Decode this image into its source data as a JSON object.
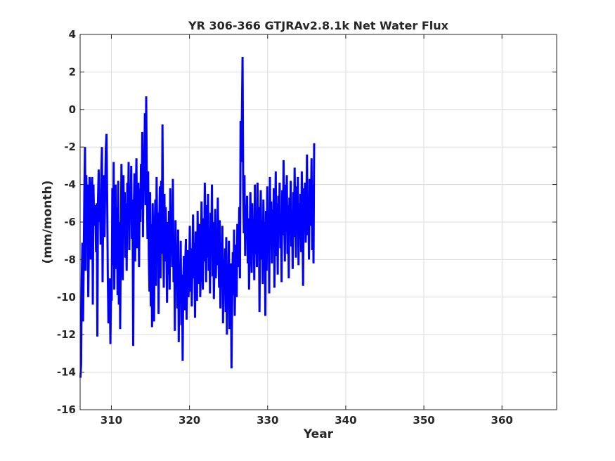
{
  "chart_data": {
    "type": "line",
    "title": "YR 306-366 GTJRAv2.8.1k Net Water Flux",
    "xlabel": "Year",
    "ylabel": "(mm/month)",
    "xlim": [
      306,
      367
    ],
    "ylim": [
      -16,
      4
    ],
    "xticks": [
      310,
      320,
      330,
      340,
      350,
      360
    ],
    "yticks": [
      -16,
      -14,
      -12,
      -10,
      -8,
      -6,
      -4,
      -2,
      0,
      2,
      4
    ],
    "grid": true,
    "legend": "none",
    "series": [
      {
        "color": "#0000ff",
        "x_start": 306.0417,
        "x_step": 0.08333,
        "values": [
          -14.3,
          -13.6,
          -9.0,
          -7.1,
          -11.3,
          -8.2,
          -4.4,
          -2.0,
          -8.6,
          -3.5,
          -6.1,
          -4.0,
          -10.0,
          -7.0,
          -3.6,
          -5.8,
          -8.0,
          -4.2,
          -3.6,
          -10.4,
          -4.0,
          -6.2,
          -5.8,
          -5.1,
          -7.6,
          -5.0,
          -12.1,
          -4.8,
          -3.2,
          -6.0,
          -4.5,
          -7.2,
          -3.4,
          -2.0,
          -9.2,
          -5.0,
          -3.5,
          -6.8,
          -4.3,
          -2.1,
          -1.3,
          -4.5,
          -8.8,
          -11.4,
          -10.8,
          -9.0,
          -12.5,
          -9.8,
          -10.2,
          -4.2,
          -8.3,
          -2.8,
          -9.6,
          -5.6,
          -4.0,
          -8.5,
          -5.2,
          -9.9,
          -3.8,
          -10.4,
          -6.0,
          -11.7,
          -7.2,
          -2.9,
          -5.8,
          -9.1,
          -3.5,
          -6.7,
          -4.4,
          -7.9,
          -5.0,
          -8.6,
          -3.9,
          -6.2,
          -2.8,
          -7.5,
          -4.1,
          -5.5,
          -3.0,
          -6.9,
          -4.8,
          -12.6,
          -5.2,
          -3.4,
          -8.1,
          -4.6,
          -2.6,
          -7.4,
          -5.7,
          -3.9,
          -8.4,
          -4.2,
          -6.0,
          -2.9,
          -5.3,
          -1.2,
          -6.8,
          -2.5,
          -3.7,
          -0.2,
          -5.1,
          0.7,
          -4.0,
          -6.9,
          -3.3,
          -7.8,
          -9.7,
          -4.4,
          -10.5,
          -6.1,
          -11.6,
          -5.0,
          -8.2,
          -11.3,
          -6.6,
          -4.8,
          -9.4,
          -3.6,
          -7.0,
          -5.5,
          -10.9,
          -6.3,
          -4.1,
          -9.0,
          -3.8,
          -7.7,
          -0.8,
          -6.4,
          -9.5,
          -4.5,
          -8.1,
          -5.2,
          -7.2,
          -10.3,
          -6.0,
          -8.8,
          -5.4,
          -9.6,
          -4.2,
          -7.5,
          -6.6,
          -8.4,
          -3.7,
          -9.2,
          -6.8,
          -11.8,
          -5.9,
          -8.5,
          -7.3,
          -10.6,
          -6.4,
          -12.4,
          -8.2,
          -9.9,
          -7.0,
          -11.5,
          -8.8,
          -13.4,
          -9.1,
          -7.8,
          -10.7,
          -8.3,
          -6.9,
          -11.2,
          -9.4,
          -7.5,
          -10.0,
          -8.6,
          -6.2,
          -9.7,
          -7.4,
          -10.5,
          -8.0,
          -5.6,
          -9.0,
          -7.1,
          -11.1,
          -6.5,
          -8.9,
          -10.2,
          -5.4,
          -9.3,
          -7.7,
          -6.1,
          -10.0,
          -8.4,
          -4.9,
          -7.3,
          -9.6,
          -5.8,
          -8.1,
          -3.9,
          -6.7,
          -9.2,
          -5.1,
          -7.9,
          -4.5,
          -8.6,
          -6.3,
          -9.8,
          -5.5,
          -7.2,
          -4.0,
          -8.9,
          -6.0,
          -10.1,
          -7.5,
          -5.3,
          -9.0,
          -6.6,
          -8.3,
          -4.7,
          -7.8,
          -9.5,
          -5.9,
          -10.6,
          -7.1,
          -8.7,
          -6.2,
          -11.4,
          -8.0,
          -9.3,
          -7.4,
          -10.8,
          -6.8,
          -12.0,
          -8.5,
          -9.7,
          -7.0,
          -11.7,
          -9.1,
          -8.2,
          -13.8,
          -10.3,
          -7.6,
          -9.9,
          -6.4,
          -11.0,
          -8.8,
          -7.2,
          -10.0,
          -6.1,
          -8.4,
          -7.5,
          -5.2,
          -9.0,
          -0.6,
          -2.8,
          -0.4,
          2.8,
          -4.2,
          -6.6,
          -3.5,
          -7.8,
          -5.1,
          -6.9,
          -4.6,
          -8.2,
          -5.8,
          -9.6,
          -7.0,
          -4.4,
          -6.3,
          -8.7,
          -5.0,
          -7.4,
          -6.1,
          -9.1,
          -4.0,
          -7.7,
          -5.5,
          -8.4,
          -3.9,
          -6.8,
          -5.2,
          -10.8,
          -6.5,
          -4.3,
          -8.0,
          -5.9,
          -9.3,
          -4.8,
          -7.1,
          -6.0,
          -11.0,
          -5.4,
          -8.6,
          -4.1,
          -7.5,
          -5.7,
          -9.8,
          -3.6,
          -6.9,
          -4.9,
          -8.2,
          -5.3,
          -7.0,
          -4.2,
          -9.5,
          -6.4,
          -3.3,
          -7.8,
          -5.0,
          -8.8,
          -4.6,
          -6.1,
          -3.9,
          -7.4,
          -5.6,
          -9.2,
          -4.3,
          -6.7,
          -2.7,
          -5.9,
          -8.1,
          -4.0,
          -6.5,
          -3.5,
          -7.7,
          -5.1,
          -9.0,
          -4.7,
          -6.2,
          -3.8,
          -7.3,
          -5.4,
          -8.5,
          -4.4,
          -6.8,
          -3.1,
          -5.7,
          -7.9,
          -4.1,
          -6.0,
          -3.6,
          -8.3,
          -5.0,
          -6.9,
          -4.5,
          -7.6,
          -3.3,
          -5.8,
          -9.4,
          -4.2,
          -6.4,
          -3.9,
          -7.1,
          -5.5,
          -2.4,
          -6.7,
          -4.8,
          -8.0,
          -3.7,
          -6.2,
          -5.1,
          -2.6,
          -7.5,
          -4.0,
          -8.2,
          -1.8
        ]
      }
    ]
  }
}
